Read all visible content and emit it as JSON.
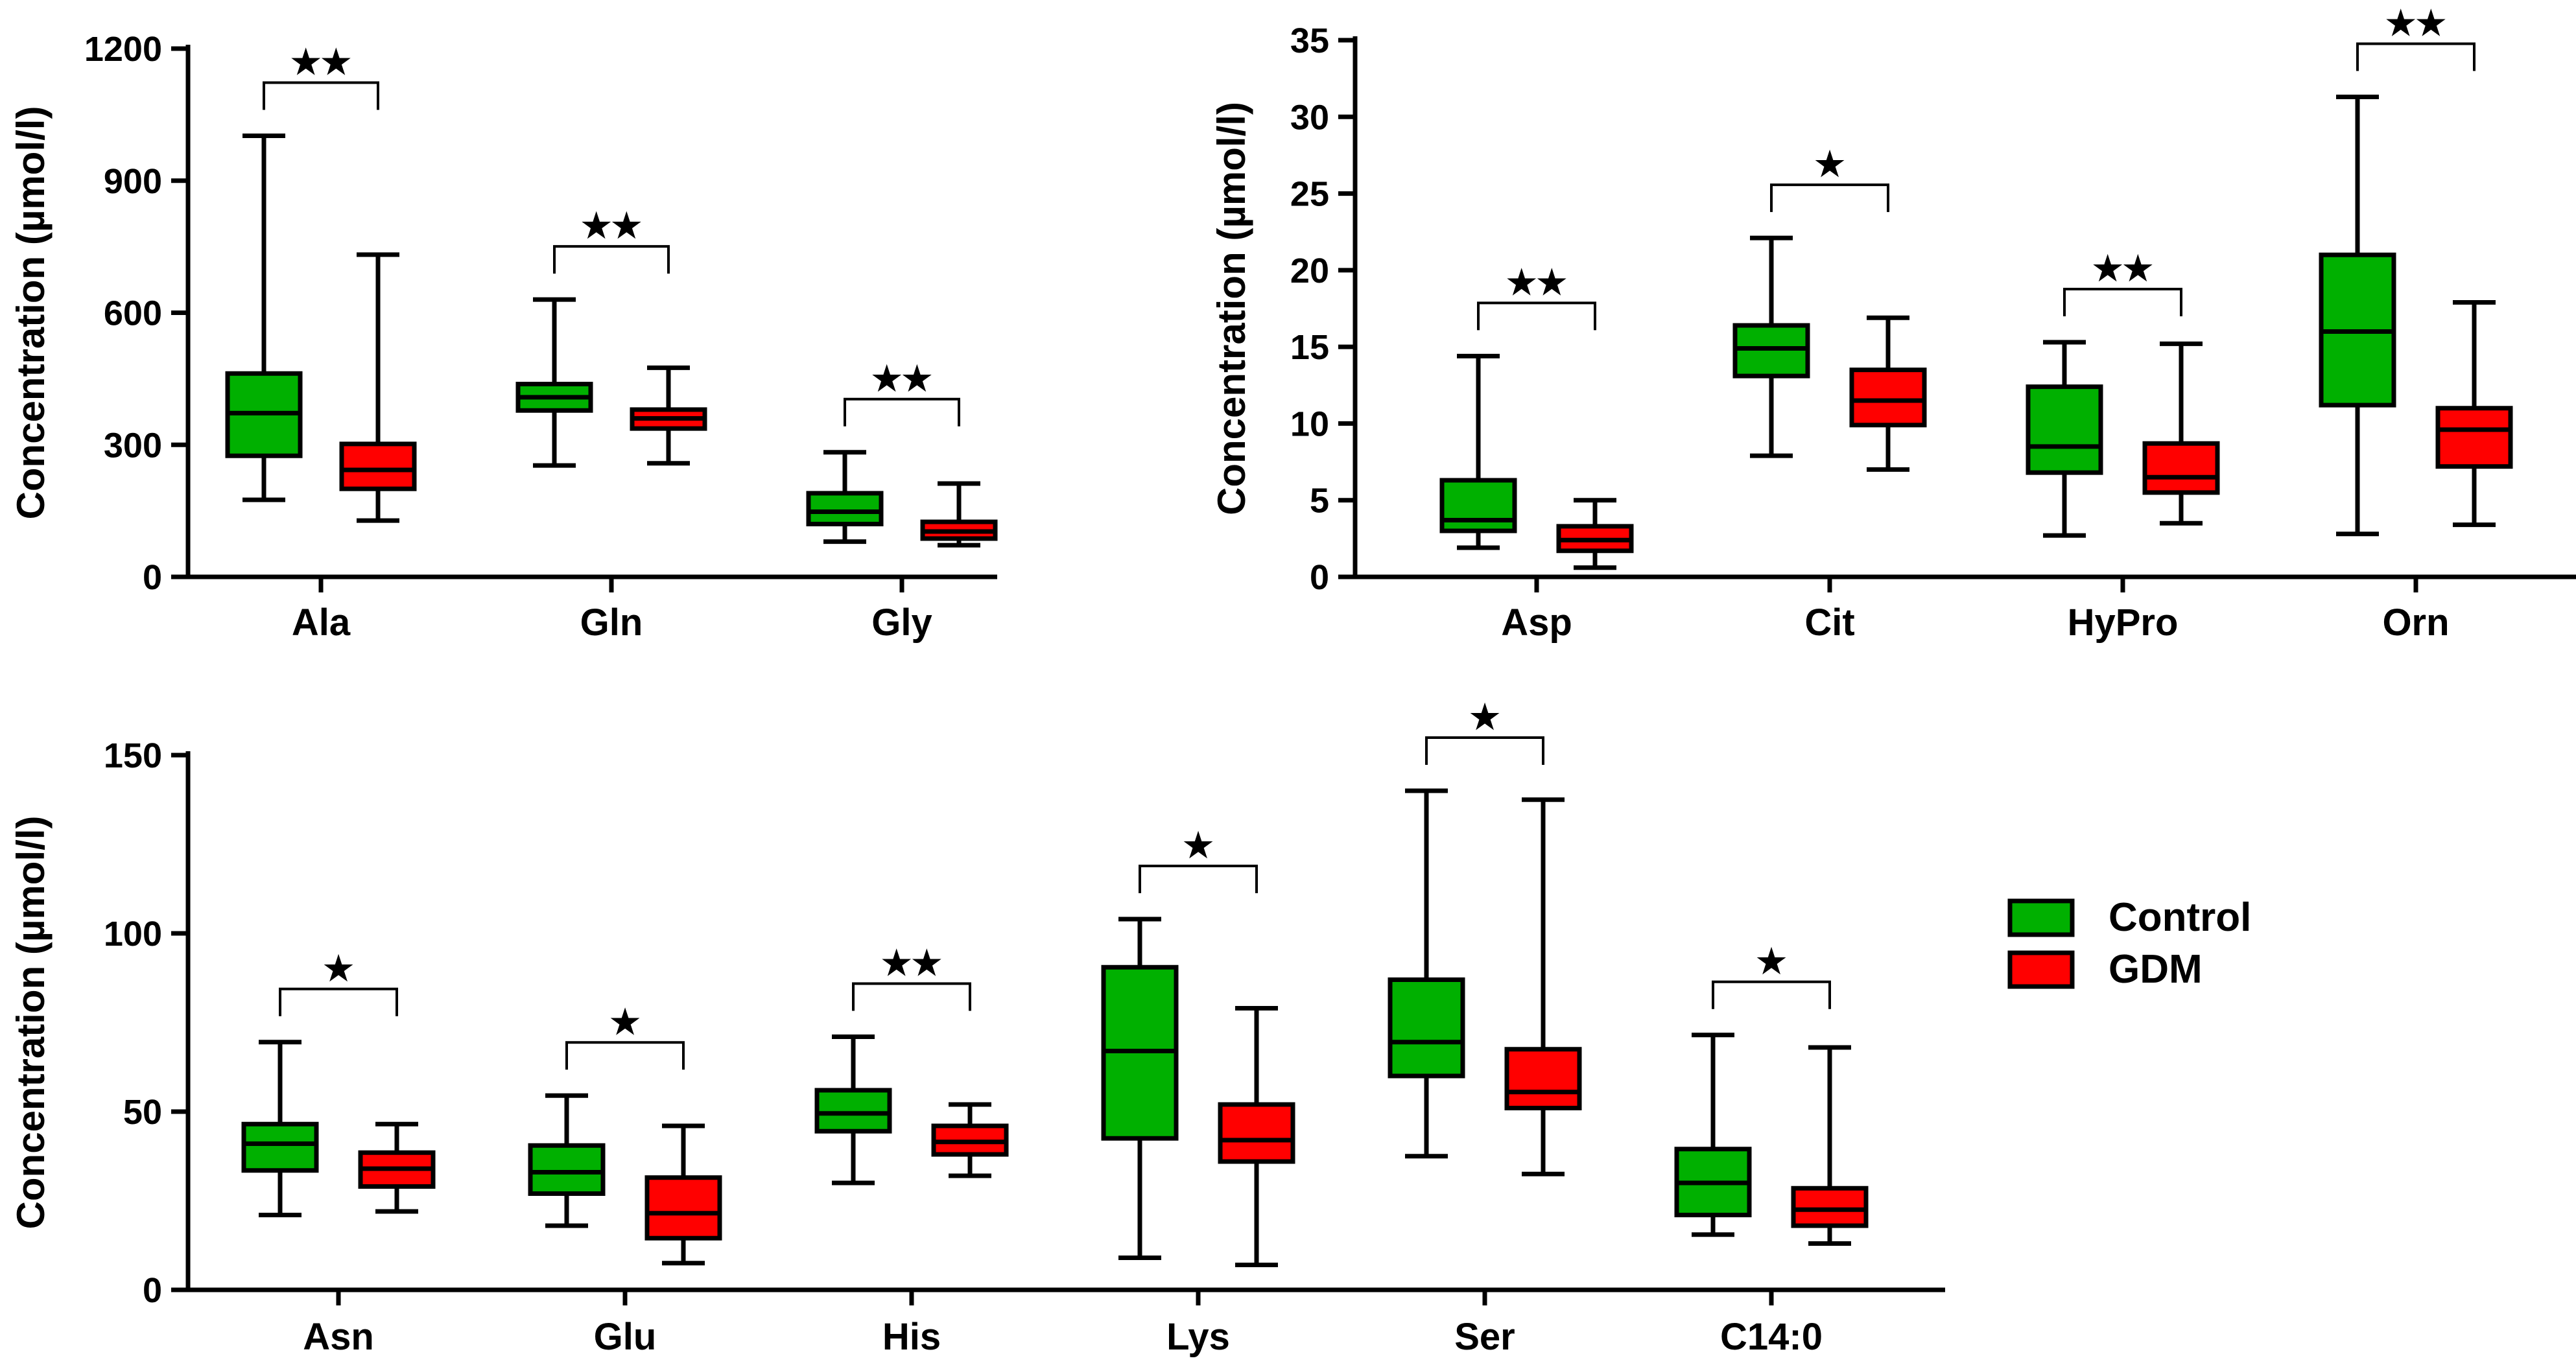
{
  "colors": {
    "control": "#00b000",
    "gdm": "#ff0000",
    "axis": "#000000"
  },
  "legend": {
    "items": [
      {
        "name": "Control",
        "color": "#00b000"
      },
      {
        "name": "GDM",
        "color": "#ff0000"
      }
    ],
    "placement": "right of bottom panel"
  },
  "chart_data": [
    {
      "type": "box",
      "ylabel": "Concentration (µmol/l)",
      "ylim": [
        0,
        1200
      ],
      "yticks": [
        0,
        300,
        600,
        900,
        1200
      ],
      "categories": [
        "Ala",
        "Gln",
        "Gly"
      ],
      "series": [
        {
          "name": "Control",
          "boxes": [
            {
              "min": 175,
              "q1": 275,
              "median": 372,
              "q3": 462,
              "max": 1002
            },
            {
              "min": 253,
              "q1": 378,
              "median": 408,
              "q3": 438,
              "max": 630
            },
            {
              "min": 80,
              "q1": 120,
              "median": 148,
              "q3": 190,
              "max": 283
            }
          ]
        },
        {
          "name": "GDM",
          "boxes": [
            {
              "min": 128,
              "q1": 200,
              "median": 243,
              "q3": 302,
              "max": 732
            },
            {
              "min": 258,
              "q1": 337,
              "median": 360,
              "q3": 380,
              "max": 475
            },
            {
              "min": 72,
              "q1": 87,
              "median": 103,
              "q3": 125,
              "max": 212
            }
          ]
        }
      ],
      "significance": [
        "★★",
        "★★",
        "★★"
      ]
    },
    {
      "type": "box",
      "ylabel": "Concentration (µmol/l)",
      "ylim": [
        0,
        35
      ],
      "yticks": [
        0,
        5,
        10,
        15,
        20,
        25,
        30,
        35
      ],
      "categories": [
        "Asp",
        "Cit",
        "HyPro",
        "Orn"
      ],
      "series": [
        {
          "name": "Control",
          "boxes": [
            {
              "min": 1.9,
              "q1": 3.0,
              "median": 3.7,
              "q3": 6.3,
              "max": 14.4
            },
            {
              "min": 7.9,
              "q1": 13.1,
              "median": 14.9,
              "q3": 16.4,
              "max": 22.1
            },
            {
              "min": 2.7,
              "q1": 6.8,
              "median": 8.5,
              "q3": 12.4,
              "max": 15.3
            },
            {
              "min": 2.8,
              "q1": 11.2,
              "median": 16.0,
              "q3": 21.0,
              "max": 31.3
            }
          ]
        },
        {
          "name": "GDM",
          "boxes": [
            {
              "min": 0.6,
              "q1": 1.7,
              "median": 2.4,
              "q3": 3.3,
              "max": 5.0
            },
            {
              "min": 7.0,
              "q1": 9.9,
              "median": 11.5,
              "q3": 13.5,
              "max": 16.9
            },
            {
              "min": 3.5,
              "q1": 5.5,
              "median": 6.5,
              "q3": 8.7,
              "max": 15.2
            },
            {
              "min": 3.4,
              "q1": 7.2,
              "median": 9.6,
              "q3": 11.0,
              "max": 17.9
            }
          ]
        }
      ],
      "significance": [
        "★★",
        "★",
        "★★",
        "★★"
      ]
    },
    {
      "type": "box",
      "ylabel": "Concentration (µmol/l)",
      "ylim": [
        0,
        150
      ],
      "yticks": [
        0,
        50,
        100,
        150
      ],
      "categories": [
        "Asn",
        "Glu",
        "His",
        "Lys",
        "Ser",
        "C14:0"
      ],
      "series": [
        {
          "name": "Control",
          "boxes": [
            {
              "min": 21,
              "q1": 33.5,
              "median": 41,
              "q3": 46.5,
              "max": 69.5
            },
            {
              "min": 18,
              "q1": 27,
              "median": 33,
              "q3": 40.5,
              "max": 54.5
            },
            {
              "min": 30,
              "q1": 44.5,
              "median": 49.5,
              "q3": 56,
              "max": 71
            },
            {
              "min": 9,
              "q1": 42.5,
              "median": 67,
              "q3": 90.5,
              "max": 104
            },
            {
              "min": 37.5,
              "q1": 60,
              "median": 69.5,
              "q3": 87,
              "max": 140
            },
            {
              "min": 15.5,
              "q1": 21,
              "median": 30,
              "q3": 39.5,
              "max": 71.5
            }
          ]
        },
        {
          "name": "GDM",
          "boxes": [
            {
              "min": 22,
              "q1": 29,
              "median": 34,
              "q3": 38.5,
              "max": 46.5
            },
            {
              "min": 7.5,
              "q1": 14.5,
              "median": 21.5,
              "q3": 31.5,
              "max": 46
            },
            {
              "min": 32,
              "q1": 38,
              "median": 41.5,
              "q3": 46,
              "max": 52
            },
            {
              "min": 7,
              "q1": 36,
              "median": 42,
              "q3": 52,
              "max": 79
            },
            {
              "min": 32.5,
              "q1": 51,
              "median": 55.5,
              "q3": 67.5,
              "max": 137.5
            },
            {
              "min": 13,
              "q1": 18,
              "median": 22.5,
              "q3": 28.5,
              "max": 68
            }
          ]
        }
      ],
      "significance": [
        "★",
        "★",
        "★★",
        "★",
        "★",
        "★"
      ]
    }
  ]
}
